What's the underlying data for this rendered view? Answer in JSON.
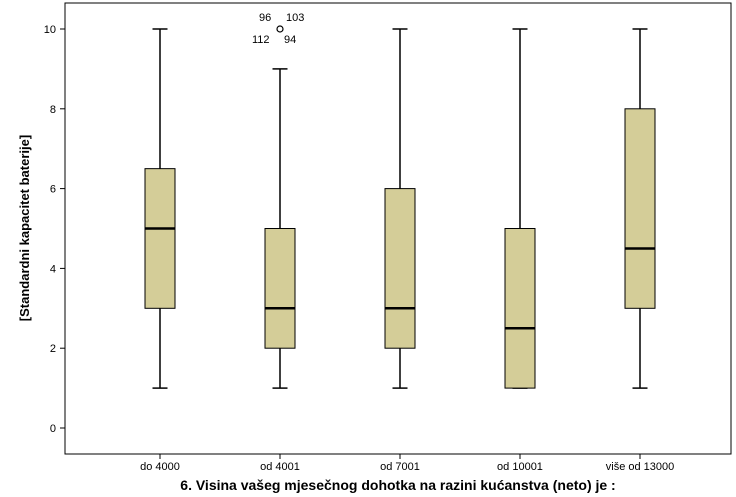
{
  "chart_data": {
    "type": "boxplot",
    "title": "",
    "xlabel": "6. Visina vašeg mjesečnog dohotka na razini kućanstva (neto) je :",
    "ylabel": "[Standardni kapacitet baterije]",
    "ylim": [
      -0.5,
      10.6
    ],
    "yticks": [
      0,
      2,
      4,
      6,
      8,
      10
    ],
    "grid": false,
    "categories": [
      "do 4000",
      "od 4001",
      "od 7001",
      "od 10001",
      "više od 13000"
    ],
    "boxes": [
      {
        "category": "do 4000",
        "whisker_low": 1,
        "q1": 3,
        "median": 5,
        "q3": 6.5,
        "whisker_high": 10,
        "outliers": []
      },
      {
        "category": "od 4001",
        "whisker_low": 1,
        "q1": 2,
        "median": 3,
        "q3": 5,
        "whisker_high": 9,
        "outliers": [
          {
            "value": 10,
            "labels": [
              "96",
              "103",
              "112",
              "94"
            ]
          }
        ]
      },
      {
        "category": "od 7001",
        "whisker_low": 1,
        "q1": 2,
        "median": 3,
        "q3": 6,
        "whisker_high": 10,
        "outliers": []
      },
      {
        "category": "od 10001",
        "whisker_low": 1,
        "q1": 1,
        "median": 2.5,
        "q3": 5,
        "whisker_high": 10,
        "outliers": []
      },
      {
        "category": "više od 13000",
        "whisker_low": 1,
        "q1": 3,
        "median": 4.5,
        "q3": 8,
        "whisker_high": 10,
        "outliers": []
      }
    ],
    "colors": {
      "box_fill": "#d4cd98",
      "stroke": "#000000",
      "background": "#ffffff"
    }
  }
}
